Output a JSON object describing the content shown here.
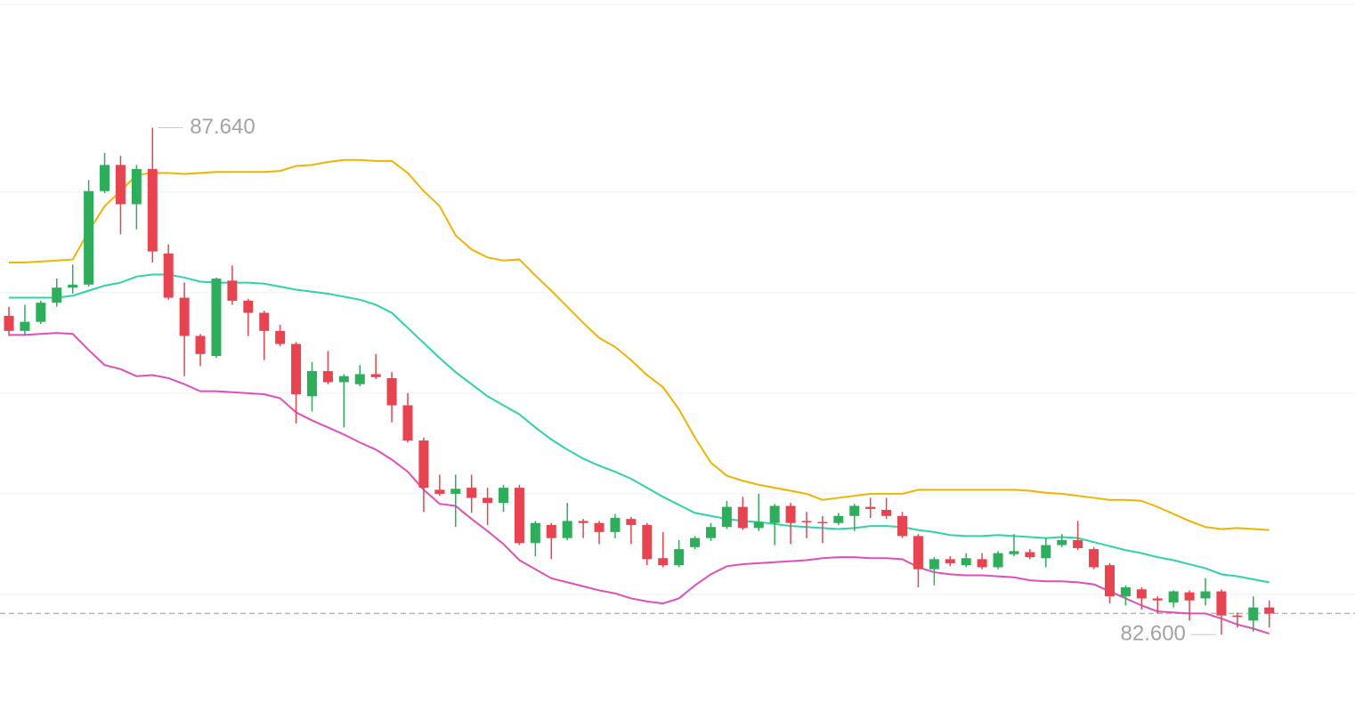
{
  "chart_data": {
    "type": "candlestick",
    "ylim": [
      81.92,
      88.91
    ],
    "grid_levels": [
      83,
      84,
      85,
      86,
      87
    ],
    "last_price": 82.81,
    "up_color": "#2dae5a",
    "down_color": "#e8434f",
    "open": [
      85.77,
      85.62,
      85.71,
      85.9,
      86.05,
      86.08,
      87.01,
      87.27,
      86.88,
      87.23,
      86.39,
      85.95,
      85.57,
      85.37,
      86.12,
      85.92,
      85.8,
      85.62,
      85.49,
      84.97,
      85.22,
      85.11,
      85.09,
      85.19,
      85.15,
      84.88,
      84.53,
      84.04,
      84.0,
      84.06,
      83.96,
      83.91,
      84.06,
      83.51,
      83.69,
      83.56,
      83.73,
      83.71,
      83.62,
      83.75,
      83.69,
      83.36,
      83.29,
      83.47,
      83.56,
      83.67,
      83.87,
      83.66,
      83.71,
      83.88,
      83.73,
      83.72,
      83.71,
      83.78,
      83.87,
      83.84,
      83.78,
      83.58,
      83.25,
      83.35,
      83.29,
      83.35,
      83.27,
      83.4,
      83.42,
      83.36,
      83.49,
      83.54,
      83.45,
      83.29,
      82.98,
      83.05,
      82.96,
      82.92,
      83.02,
      82.96,
      83.03,
      82.79,
      82.74,
      82.87
    ],
    "high": [
      85.86,
      85.88,
      85.92,
      86.14,
      86.28,
      87.12,
      87.39,
      87.36,
      87.27,
      87.64,
      86.48,
      86.1,
      85.59,
      86.15,
      86.27,
      85.94,
      85.82,
      85.68,
      85.51,
      85.31,
      85.42,
      85.19,
      85.28,
      85.39,
      85.21,
      85.0,
      84.56,
      84.19,
      84.19,
      84.19,
      84.06,
      84.09,
      84.09,
      83.73,
      83.71,
      83.91,
      83.75,
      83.73,
      83.8,
      83.77,
      83.71,
      83.62,
      83.54,
      83.58,
      83.71,
      83.93,
      83.97,
      84.0,
      83.9,
      83.91,
      83.82,
      83.78,
      83.81,
      83.9,
      83.96,
      83.96,
      83.82,
      83.6,
      83.37,
      83.38,
      83.41,
      83.41,
      83.43,
      83.6,
      83.45,
      83.56,
      83.6,
      83.73,
      83.47,
      83.31,
      83.09,
      83.07,
      82.98,
      83.04,
      83.04,
      83.16,
      83.05,
      82.82,
      82.98,
      82.94
    ],
    "low": [
      85.57,
      85.57,
      85.69,
      85.86,
      85.99,
      86.06,
      86.99,
      86.58,
      86.63,
      86.3,
      85.93,
      85.17,
      85.27,
      85.35,
      85.88,
      85.57,
      85.33,
      85.47,
      84.7,
      84.82,
      85.09,
      84.66,
      85.07,
      85.14,
      84.71,
      84.51,
      83.82,
      83.98,
      83.67,
      83.81,
      83.69,
      83.82,
      83.49,
      83.38,
      83.35,
      83.54,
      83.56,
      83.5,
      83.56,
      83.5,
      83.29,
      83.27,
      83.27,
      83.45,
      83.53,
      83.65,
      83.64,
      83.63,
      83.49,
      83.5,
      83.56,
      83.51,
      83.69,
      83.63,
      83.76,
      83.75,
      83.56,
      83.07,
      83.09,
      83.28,
      83.27,
      83.25,
      83.25,
      83.38,
      83.35,
      83.27,
      83.47,
      83.44,
      83.25,
      82.91,
      82.89,
      82.85,
      82.81,
      82.87,
      82.74,
      82.89,
      82.6,
      82.67,
      82.63,
      82.67
    ],
    "close": [
      85.62,
      85.71,
      85.9,
      86.05,
      86.08,
      87.01,
      87.27,
      86.88,
      87.23,
      86.41,
      85.95,
      85.57,
      85.39,
      86.14,
      85.92,
      85.8,
      85.62,
      85.49,
      84.99,
      85.22,
      85.11,
      85.17,
      85.19,
      85.16,
      84.88,
      84.53,
      84.06,
      84.0,
      84.05,
      83.96,
      83.91,
      84.06,
      83.51,
      83.71,
      83.56,
      83.73,
      83.71,
      83.62,
      83.76,
      83.69,
      83.35,
      83.29,
      83.45,
      83.56,
      83.67,
      83.87,
      83.66,
      83.72,
      83.88,
      83.71,
      83.72,
      83.71,
      83.78,
      83.88,
      83.85,
      83.78,
      83.58,
      83.25,
      83.35,
      83.31,
      83.36,
      83.27,
      83.41,
      83.43,
      83.37,
      83.49,
      83.54,
      83.46,
      83.27,
      82.98,
      83.07,
      82.96,
      82.94,
      83.03,
      82.94,
      83.03,
      82.79,
      82.78,
      82.87,
      82.81
    ],
    "bands": [
      {
        "color": "#f0b400",
        "values": [
          86.3,
          86.3,
          86.31,
          86.32,
          86.33,
          86.61,
          86.86,
          87.01,
          87.17,
          87.19,
          87.19,
          87.18,
          87.19,
          87.2,
          87.2,
          87.2,
          87.2,
          87.21,
          87.26,
          87.27,
          87.3,
          87.32,
          87.32,
          87.31,
          87.31,
          87.19,
          87.01,
          86.86,
          86.57,
          86.43,
          86.35,
          86.32,
          86.33,
          86.17,
          86.02,
          85.86,
          85.7,
          85.55,
          85.46,
          85.33,
          85.18,
          85.06,
          84.84,
          84.56,
          84.31,
          84.18,
          84.13,
          84.09,
          84.06,
          84.03,
          84.0,
          83.94,
          83.96,
          83.98,
          84.0,
          84.0,
          84.0,
          84.04,
          84.04,
          84.04,
          84.04,
          84.04,
          84.04,
          84.04,
          84.03,
          84.01,
          84.0,
          83.98,
          83.96,
          83.94,
          83.94,
          83.93,
          83.87,
          83.8,
          83.73,
          83.67,
          83.65,
          83.66,
          83.65,
          83.64
        ]
      },
      {
        "color": "#2ed3a8",
        "values": [
          85.95,
          85.95,
          85.95,
          85.95,
          85.97,
          86.02,
          86.07,
          86.1,
          86.16,
          86.18,
          86.18,
          86.15,
          86.11,
          86.1,
          86.1,
          86.1,
          86.09,
          86.06,
          86.03,
          86.01,
          85.99,
          85.96,
          85.93,
          85.88,
          85.8,
          85.65,
          85.5,
          85.35,
          85.21,
          85.09,
          84.97,
          84.88,
          84.79,
          84.66,
          84.54,
          84.44,
          84.35,
          84.28,
          84.22,
          84.15,
          84.06,
          83.97,
          83.89,
          83.81,
          83.78,
          83.75,
          83.73,
          83.72,
          83.7,
          83.68,
          83.67,
          83.66,
          83.65,
          83.66,
          83.68,
          83.68,
          83.67,
          83.64,
          83.62,
          83.59,
          83.58,
          83.58,
          83.59,
          83.58,
          83.57,
          83.56,
          83.57,
          83.56,
          83.52,
          83.48,
          83.44,
          83.41,
          83.37,
          83.34,
          83.3,
          83.26,
          83.2,
          83.18,
          83.15,
          83.12
        ]
      },
      {
        "color": "#e04fb7",
        "values": [
          85.58,
          85.58,
          85.59,
          85.6,
          85.59,
          85.43,
          85.28,
          85.24,
          85.17,
          85.18,
          85.15,
          85.09,
          85.02,
          85.02,
          85.01,
          85.0,
          84.99,
          84.95,
          84.81,
          84.73,
          84.66,
          84.59,
          84.51,
          84.44,
          84.34,
          84.22,
          84.04,
          83.9,
          83.88,
          83.75,
          83.63,
          83.5,
          83.34,
          83.25,
          83.16,
          83.12,
          83.08,
          83.04,
          83.01,
          82.96,
          82.93,
          82.91,
          82.96,
          83.09,
          83.2,
          83.28,
          83.3,
          83.31,
          83.32,
          83.33,
          83.34,
          83.36,
          83.37,
          83.37,
          83.36,
          83.36,
          83.35,
          83.27,
          83.22,
          83.2,
          83.19,
          83.19,
          83.18,
          83.17,
          83.14,
          83.13,
          83.13,
          83.12,
          83.1,
          83.03,
          82.96,
          82.89,
          82.83,
          82.82,
          82.81,
          82.81,
          82.76,
          82.7,
          82.66,
          82.61
        ]
      }
    ],
    "annotations": [
      {
        "value": 87.64,
        "label": "87.640"
      },
      {
        "value": 82.6,
        "label": "82.600"
      }
    ]
  }
}
